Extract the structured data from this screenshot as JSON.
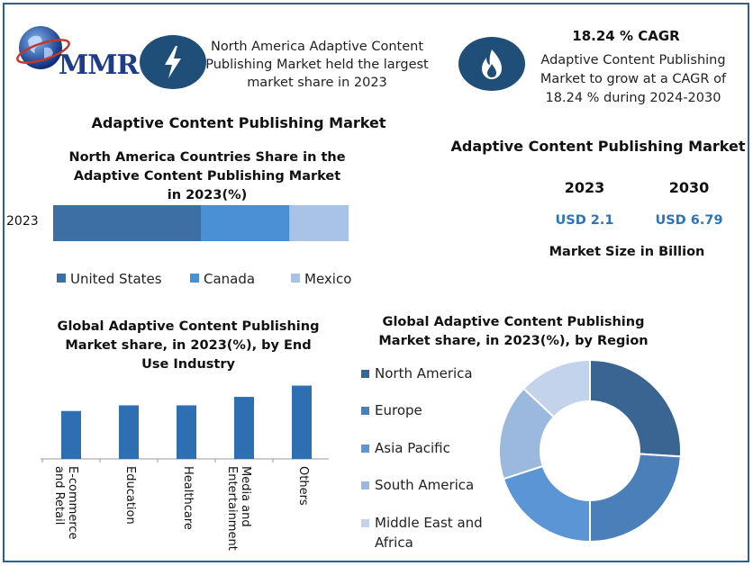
{
  "logo": {
    "text": "MMR"
  },
  "header": {
    "highlight_text": "North America Adaptive Content Publishing Market held the largest market share in 2023",
    "cagr_title": "18.24 % CAGR",
    "cagr_text": "Adaptive Content Publishing Market to grow at a CAGR of 18.24 % during 2024-2030"
  },
  "market_title_left": "Adaptive Content Publishing Market",
  "market_size": {
    "title": "Adaptive Content Publishing Market",
    "year_a": "2023",
    "year_b": "2030",
    "value_a": "USD 2.1",
    "value_b": "USD 6.79",
    "caption": "Market Size in Billion"
  },
  "colors": {
    "dark_blue": "#1f4e79",
    "us": "#3d6fa4",
    "canada": "#4a90d4",
    "mexico": "#a9c3e6",
    "bar": "#2e6fb3",
    "na": "#3a6592",
    "europe": "#4b7fba",
    "apac": "#5b95d6",
    "sa": "#9bb8de",
    "mea": "#c3d3ec"
  },
  "chart_data": [
    {
      "type": "bar",
      "orientation": "horizontal-stacked",
      "title": "North America Countries Share in the Adaptive Content Publishing Market in 2023(%)",
      "categories": [
        "2023"
      ],
      "series": [
        {
          "name": "United States",
          "values": [
            50
          ]
        },
        {
          "name": "Canada",
          "values": [
            30
          ]
        },
        {
          "name": "Mexico",
          "values": [
            20
          ]
        }
      ],
      "xlim": [
        0,
        100
      ],
      "legend": "bottom"
    },
    {
      "type": "bar",
      "title": "Global Adaptive Content Publishing Market share, in 2023(%), by End Use Industry",
      "categories": [
        "E-commerce and Retail",
        "Education",
        "Healthcare",
        "Media and Entertainment",
        "Others"
      ],
      "values": [
        17,
        19,
        19,
        22,
        26
      ],
      "ylim": [
        0,
        30
      ]
    },
    {
      "type": "pie",
      "style": "donut",
      "title": "Global Adaptive Content Publishing Market share, in 2023(%), by Region",
      "categories": [
        "North America",
        "Europe",
        "Asia Pacific",
        "South America",
        "Middle East and Africa"
      ],
      "values": [
        26,
        24,
        20,
        17,
        13
      ],
      "legend": "left"
    }
  ]
}
